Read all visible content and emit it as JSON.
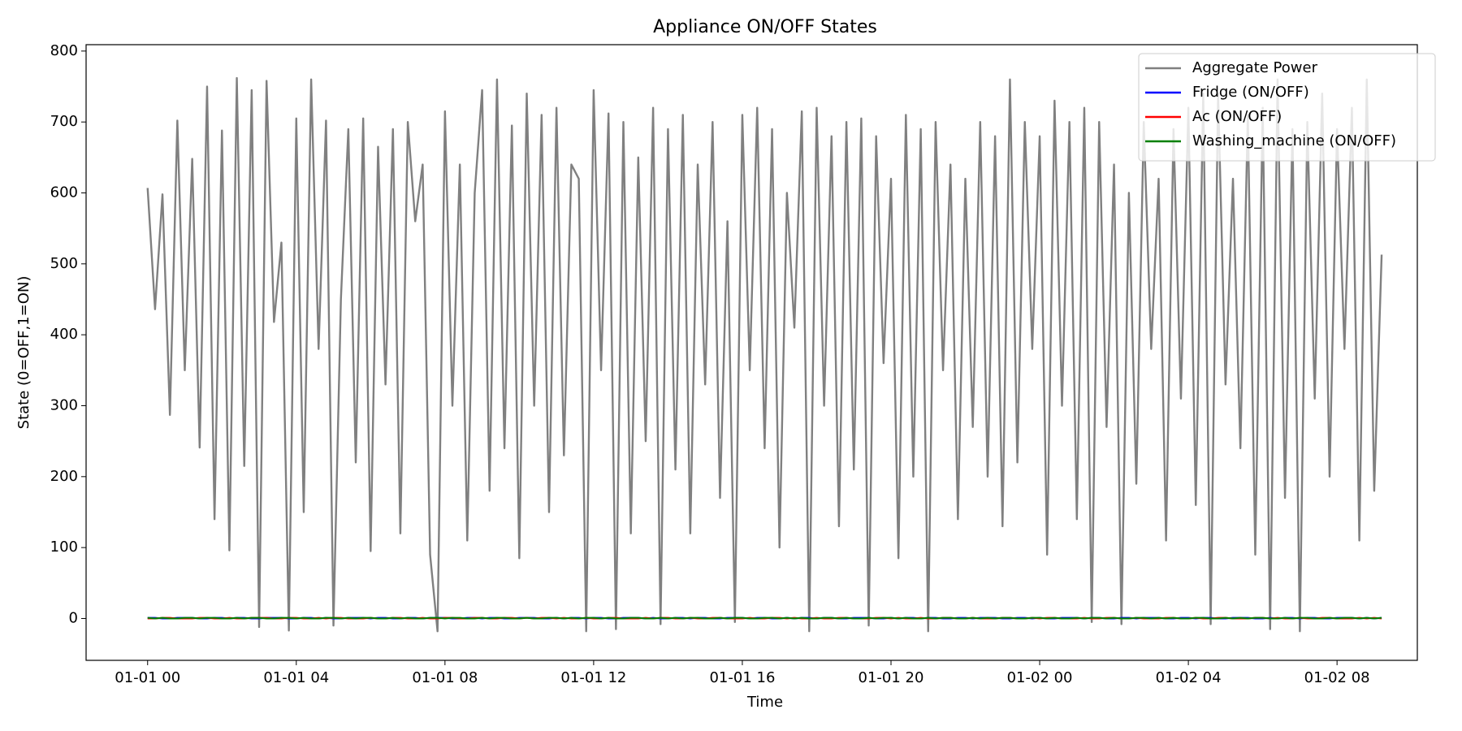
{
  "chart_data": {
    "type": "line",
    "title": "Appliance ON/OFF States",
    "x_label": "Time",
    "y_label": "State (0=OFF,1=ON)",
    "x": [
      0,
      0.2,
      0.4,
      0.6,
      0.8,
      1,
      1.2,
      1.4,
      1.6,
      1.8,
      2,
      2.2,
      2.4,
      2.6,
      2.8,
      3,
      3.2,
      3.4,
      3.6,
      3.8,
      4,
      4.2,
      4.4,
      4.6,
      4.8,
      5,
      5.2,
      5.4,
      5.6,
      5.8,
      6,
      6.2,
      6.4,
      6.6,
      6.8,
      7,
      7.2,
      7.4,
      7.6,
      7.8,
      8,
      8.2,
      8.4,
      8.6,
      8.8,
      9,
      9.2,
      9.4,
      9.6,
      9.8,
      10,
      10.2,
      10.4,
      10.6,
      10.8,
      11,
      11.2,
      11.4,
      11.6,
      11.8,
      12,
      12.2,
      12.4,
      12.6,
      12.8,
      13,
      13.2,
      13.4,
      13.6,
      13.8,
      14,
      14.2,
      14.4,
      14.6,
      14.8,
      15,
      15.2,
      15.4,
      15.6,
      15.8,
      16,
      16.2,
      16.4,
      16.6,
      16.8,
      17,
      17.2,
      17.4,
      17.6,
      17.8,
      18,
      18.2,
      18.4,
      18.6,
      18.8,
      19,
      19.2,
      19.4,
      19.6,
      19.8,
      20,
      20.2,
      20.4,
      20.6,
      20.8,
      21,
      21.2,
      21.4,
      21.6,
      21.8,
      22,
      22.2,
      22.4,
      22.6,
      22.8,
      23,
      23.2,
      23.4,
      23.6,
      23.8,
      24,
      24.2,
      24.4,
      24.6,
      24.8,
      25,
      25.2,
      25.4,
      25.6,
      25.8,
      26,
      26.2,
      26.4,
      26.6,
      26.8,
      27,
      27.2,
      27.4,
      27.6,
      27.8,
      28,
      28.2,
      28.4,
      28.6,
      28.8,
      29,
      29.2,
      29.4,
      29.6,
      29.8,
      30,
      30.2,
      30.4,
      30.6,
      30.8,
      31,
      31.2,
      31.4,
      31.6,
      31.8,
      32,
      32.2,
      32.4,
      32.6,
      32.8,
      33,
      33.2
    ],
    "series": [
      {
        "name": "Aggregate Power",
        "color": "#808080",
        "values": [
          607,
          436,
          598,
          287,
          702,
          350,
          648,
          241,
          750,
          140,
          688,
          96,
          762,
          215,
          745,
          -12,
          758,
          418,
          530,
          -17,
          705,
          150,
          760,
          380,
          702,
          -10,
          450,
          690,
          220,
          705,
          95,
          665,
          330,
          690,
          120,
          700,
          560,
          640,
          90,
          -18,
          715,
          300,
          640,
          110,
          600,
          745,
          180,
          760,
          240,
          695,
          85,
          740,
          300,
          710,
          150,
          720,
          230,
          640,
          620,
          -18,
          745,
          350,
          712,
          -15,
          700,
          120,
          650,
          250,
          720,
          -8,
          690,
          210,
          710,
          120,
          640,
          330,
          700,
          170,
          560,
          -5,
          710,
          350,
          720,
          240,
          690,
          100,
          600,
          410,
          715,
          -18,
          720,
          300,
          680,
          130,
          700,
          210,
          705,
          -10,
          680,
          360,
          620,
          85,
          710,
          200,
          690,
          -18,
          700,
          350,
          640,
          140,
          620,
          270,
          700,
          200,
          680,
          130,
          760,
          220,
          700,
          380,
          680,
          90,
          730,
          300,
          700,
          140,
          720,
          -5,
          700,
          270,
          640,
          -8,
          600,
          190,
          700,
          380,
          620,
          110,
          690,
          310,
          720,
          160,
          740,
          -8,
          740,
          330,
          620,
          240,
          710,
          90,
          720,
          -15,
          760,
          170,
          690,
          -18,
          700,
          310,
          740,
          200,
          690,
          380,
          720,
          110,
          760,
          180,
          513
        ]
      },
      {
        "name": "Fridge (ON/OFF)",
        "color": "#0000ff",
        "values": [
          1,
          1,
          0,
          0,
          1,
          1,
          1,
          0,
          0,
          1,
          1,
          0,
          1,
          1,
          0,
          0,
          1,
          1,
          1,
          0,
          0,
          1,
          1,
          0,
          1,
          0,
          0,
          1,
          1,
          1,
          0,
          1,
          1,
          0,
          0,
          1,
          1,
          0,
          1,
          1,
          1,
          0,
          0,
          1,
          1,
          0,
          1,
          1,
          0,
          0,
          1,
          1,
          1,
          0,
          0,
          1,
          0,
          1,
          1,
          0,
          1,
          1,
          0,
          0,
          1,
          1,
          1,
          0,
          1,
          0,
          0,
          1,
          1,
          0,
          1,
          1,
          0,
          0,
          1,
          1,
          1,
          0,
          1,
          1,
          0,
          0,
          1,
          0,
          1,
          1,
          0,
          1,
          1,
          0,
          0,
          1,
          1,
          1,
          0,
          0,
          1,
          0,
          1,
          1,
          0,
          1,
          1,
          0,
          0,
          1,
          1,
          0,
          1,
          1,
          1,
          0,
          0,
          1,
          1,
          0,
          1,
          0,
          0,
          1,
          1,
          1,
          0,
          1,
          1,
          0,
          0,
          1,
          1,
          0,
          1,
          1,
          1,
          0,
          0,
          1,
          1,
          0,
          1,
          1,
          0,
          0,
          1,
          1,
          1,
          0,
          0,
          1,
          0,
          1,
          1,
          0,
          1,
          1,
          0,
          0,
          1,
          1,
          1,
          0,
          1,
          0,
          1
        ]
      },
      {
        "name": "Ac (ON/OFF)",
        "color": "#ff0000",
        "values": [
          0,
          0,
          1,
          1,
          0,
          0,
          0,
          1,
          1,
          0,
          0,
          1,
          0,
          0,
          1,
          1,
          1,
          0,
          0,
          1,
          1,
          0,
          0,
          1,
          0,
          1,
          1,
          0,
          0,
          0,
          1,
          0,
          0,
          1,
          1,
          0,
          0,
          1,
          0,
          0,
          1,
          1,
          0,
          0,
          1,
          1,
          0,
          0,
          1,
          1,
          0,
          1,
          0,
          1,
          1,
          0,
          1,
          0,
          0,
          1,
          0,
          0,
          1,
          1,
          0,
          0,
          0,
          1,
          0,
          1,
          1,
          0,
          0,
          1,
          0,
          0,
          1,
          1,
          0,
          0,
          0,
          1,
          0,
          0,
          1,
          1,
          0,
          1,
          0,
          0,
          1,
          0,
          0,
          1,
          1,
          0,
          0,
          0,
          1,
          1,
          0,
          1,
          0,
          0,
          1,
          0,
          0,
          1,
          1,
          0,
          0,
          1,
          0,
          0,
          0,
          1,
          1,
          0,
          0,
          1,
          0,
          1,
          1,
          0,
          0,
          0,
          1,
          0,
          0,
          1,
          1,
          0,
          0,
          1,
          0,
          0,
          0,
          1,
          1,
          0,
          0,
          1,
          0,
          0,
          1,
          1,
          0,
          0,
          0,
          1,
          1,
          0,
          1,
          0,
          0,
          1,
          0,
          0,
          1,
          1,
          0,
          0,
          0,
          1,
          0,
          1,
          0
        ]
      },
      {
        "name": "Washing_machine (ON/OFF)",
        "color": "#008000",
        "values": [
          1,
          0,
          1,
          0,
          0,
          1,
          1,
          0,
          1,
          1,
          0,
          0,
          1,
          0,
          1,
          1,
          0,
          0,
          1,
          1,
          0,
          1,
          0,
          0,
          1,
          1,
          0,
          1,
          0,
          1,
          1,
          0,
          0,
          1,
          0,
          1,
          0,
          0,
          1,
          1,
          0,
          1,
          1,
          0,
          0,
          1,
          0,
          1,
          1,
          0,
          0,
          1,
          0,
          0,
          1,
          1,
          0,
          1,
          0,
          1,
          1,
          0,
          1,
          0,
          0,
          1,
          1,
          0,
          0,
          1,
          0,
          1,
          0,
          1,
          1,
          0,
          0,
          1,
          0,
          1,
          1,
          0,
          0,
          1,
          1,
          0,
          1,
          0,
          1,
          0,
          0,
          1,
          1,
          0,
          1,
          0,
          0,
          1,
          0,
          1,
          1,
          0,
          1,
          0,
          0,
          1,
          0,
          1,
          1,
          0,
          0,
          1,
          0,
          1,
          0,
          1,
          1,
          0,
          0,
          1,
          1,
          0,
          1,
          0,
          0,
          1,
          0,
          1,
          1,
          0,
          1,
          0,
          0,
          1,
          1,
          0,
          1,
          0,
          1,
          0,
          0,
          1,
          1,
          0,
          0,
          1,
          0,
          1,
          0,
          1,
          1,
          0,
          0,
          1,
          0,
          1,
          1,
          0,
          0,
          1,
          0,
          1,
          1,
          0,
          1,
          0,
          1
        ]
      }
    ],
    "xlim": [
      -1.655,
      34.16
    ],
    "ylim": [
      -59,
      809
    ],
    "xticks": [
      {
        "value": 0,
        "label": "01-01 00"
      },
      {
        "value": 4,
        "label": "01-01 04"
      },
      {
        "value": 8,
        "label": "01-01 08"
      },
      {
        "value": 12,
        "label": "01-01 12"
      },
      {
        "value": 16,
        "label": "01-01 16"
      },
      {
        "value": 20,
        "label": "01-01 20"
      },
      {
        "value": 24,
        "label": "01-02 00"
      },
      {
        "value": 28,
        "label": "01-02 04"
      },
      {
        "value": 32,
        "label": "01-02 08"
      }
    ],
    "yticks": [
      0,
      100,
      200,
      300,
      400,
      500,
      600,
      700,
      800
    ],
    "legend": "upper right",
    "grid": false
  }
}
